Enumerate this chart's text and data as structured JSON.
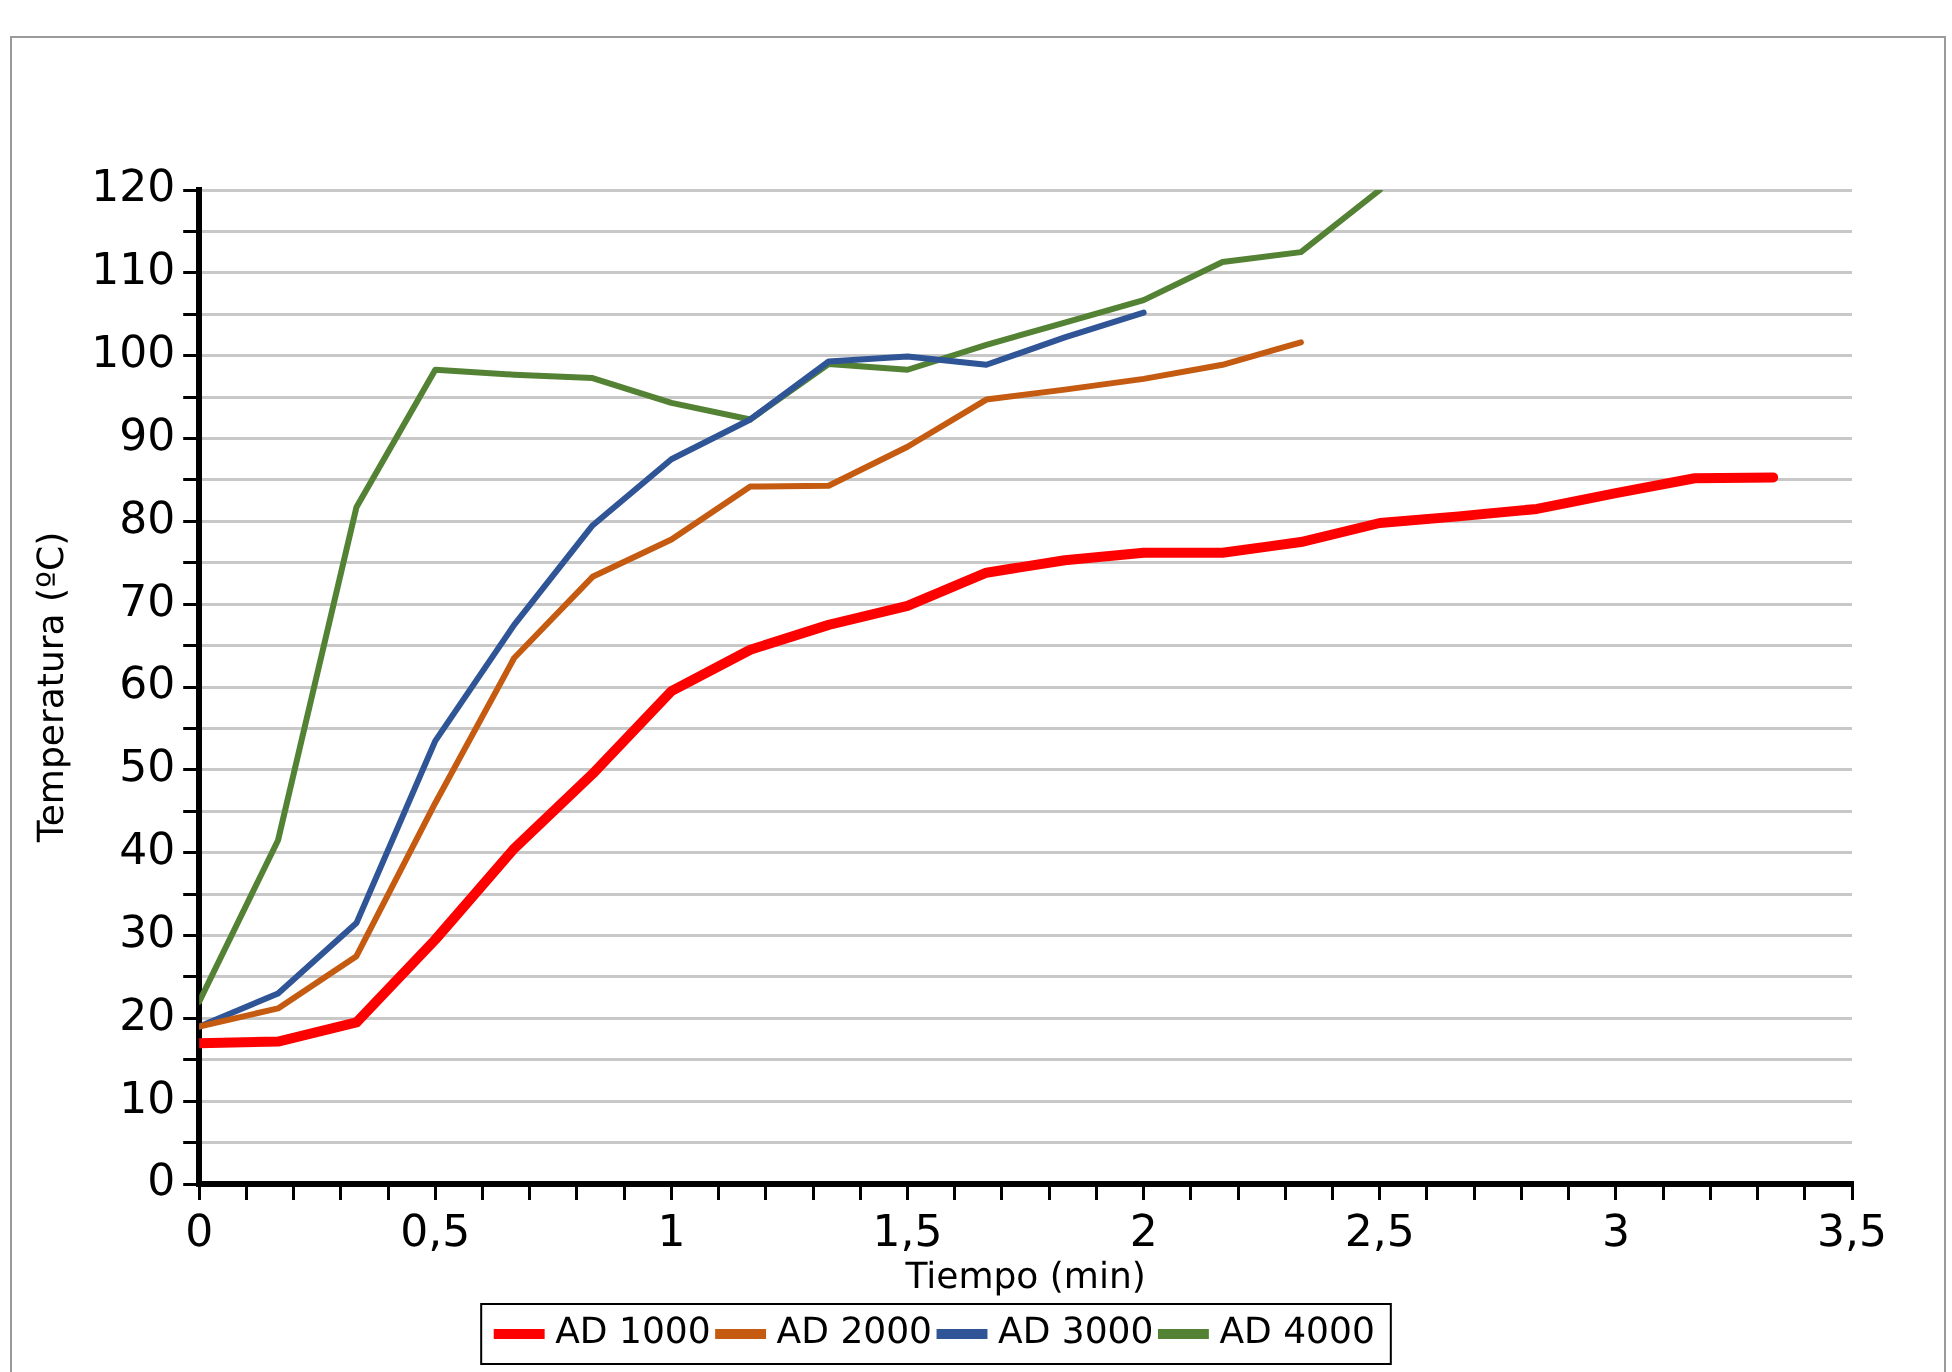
{
  "chart_data": {
    "type": "line",
    "xlabel": "Tiempo (min)",
    "ylabel": "Temperatura (ºC)",
    "xlim": [
      0,
      3.5
    ],
    "ylim": [
      0,
      120
    ],
    "xticks": [
      0,
      {
        "value": 0.1,
        "label": null
      },
      {
        "value": 0.2,
        "label": null
      },
      {
        "value": 0.3,
        "label": null
      },
      {
        "value": 0.4,
        "label": null
      },
      {
        "value": 0.5,
        "label": "0,5"
      },
      {
        "value": 0.6,
        "label": null
      },
      {
        "value": 0.7,
        "label": null
      },
      {
        "value": 0.8,
        "label": null
      },
      {
        "value": 0.9,
        "label": null
      },
      1,
      {
        "value": 1.1,
        "label": null
      },
      {
        "value": 1.2,
        "label": null
      },
      {
        "value": 1.3,
        "label": null
      },
      {
        "value": 1.4,
        "label": null
      },
      {
        "value": 1.5,
        "label": "1,5"
      },
      {
        "value": 1.6,
        "label": null
      },
      {
        "value": 1.7,
        "label": null
      },
      {
        "value": 1.8,
        "label": null
      },
      {
        "value": 1.9,
        "label": null
      },
      2,
      {
        "value": 2.1,
        "label": null
      },
      {
        "value": 2.2,
        "label": null
      },
      {
        "value": 2.3,
        "label": null
      },
      {
        "value": 2.4,
        "label": null
      },
      {
        "value": 2.5,
        "label": "2,5"
      },
      {
        "value": 2.6,
        "label": null
      },
      {
        "value": 2.7,
        "label": null
      },
      {
        "value": 2.8,
        "label": null
      },
      {
        "value": 2.9,
        "label": null
      },
      3,
      {
        "value": 3.1,
        "label": null
      },
      {
        "value": 3.2,
        "label": null
      },
      {
        "value": 3.3,
        "label": null
      },
      {
        "value": 3.4,
        "label": null
      },
      {
        "value": 3.5,
        "label": "3,5"
      }
    ],
    "yticks": [
      0,
      {
        "value": 5,
        "label": null
      },
      10,
      {
        "value": 15,
        "label": null
      },
      20,
      {
        "value": 25,
        "label": null
      },
      30,
      {
        "value": 35,
        "label": null
      },
      40,
      {
        "value": 45,
        "label": null
      },
      50,
      {
        "value": 55,
        "label": null
      },
      60,
      {
        "value": 65,
        "label": null
      },
      70,
      {
        "value": 75,
        "label": null
      },
      80,
      {
        "value": 85,
        "label": null
      },
      90,
      {
        "value": 95,
        "label": null
      },
      100,
      {
        "value": 105,
        "label": null
      },
      110,
      {
        "value": 115,
        "label": null
      },
      120
    ],
    "grid": "y",
    "legend": "bottom",
    "marker": "none",
    "line_style": "solid",
    "series": [
      {
        "name": "AD 1000",
        "color": "#ff0000",
        "x": [
          0,
          0.167,
          0.333,
          0.5,
          0.667,
          0.833,
          1,
          1.167,
          1.333,
          1.5,
          1.667,
          1.833,
          2,
          2.167,
          2.333,
          2.5,
          2.667,
          2.833,
          3,
          3.167,
          3.333
        ],
        "values": [
          17,
          17.2,
          19.5,
          29.5,
          40.5,
          49.5,
          59.5,
          64.5,
          67.5,
          69.8,
          73.8,
          75.3,
          76.2,
          76.2,
          77.5,
          79.8,
          80.6,
          81.5,
          83.4,
          85.2,
          85.3
        ]
      },
      {
        "name": "AD 2000",
        "color": "#c55a11",
        "x": [
          0,
          0.167,
          0.333,
          0.5,
          0.667,
          0.833,
          1,
          1.167,
          1.333,
          1.5,
          1.667,
          1.833,
          2,
          2.167,
          2.333
        ],
        "values": [
          19,
          21.2,
          27.5,
          46,
          63.5,
          73.3,
          77.8,
          84.2,
          84.3,
          89,
          94.7,
          95.9,
          97.2,
          98.9,
          101.6
        ]
      },
      {
        "name": "AD 3000",
        "color": "#2f5597",
        "x": [
          0,
          0.167,
          0.333,
          0.5,
          0.667,
          0.833,
          1,
          1.167,
          1.333,
          1.5,
          1.667,
          1.833,
          2
        ],
        "values": [
          19,
          23,
          31.5,
          53.5,
          67.5,
          79.5,
          87.5,
          92.3,
          99.3,
          99.9,
          98.9,
          102.2,
          105.2
        ]
      },
      {
        "name": "AD 4000",
        "color": "#548235",
        "x": [
          0,
          0.167,
          0.333,
          0.5,
          0.667,
          0.833,
          1,
          1.167,
          1.333,
          1.5,
          1.667,
          1.833,
          2,
          2.167,
          2.333,
          2.5
        ],
        "values": [
          22,
          41.5,
          81.7,
          98.3,
          97.7,
          97.3,
          94.3,
          92.3,
          99,
          98.3,
          101.3,
          104,
          106.7,
          111.3,
          112.5,
          120
        ]
      }
    ]
  }
}
